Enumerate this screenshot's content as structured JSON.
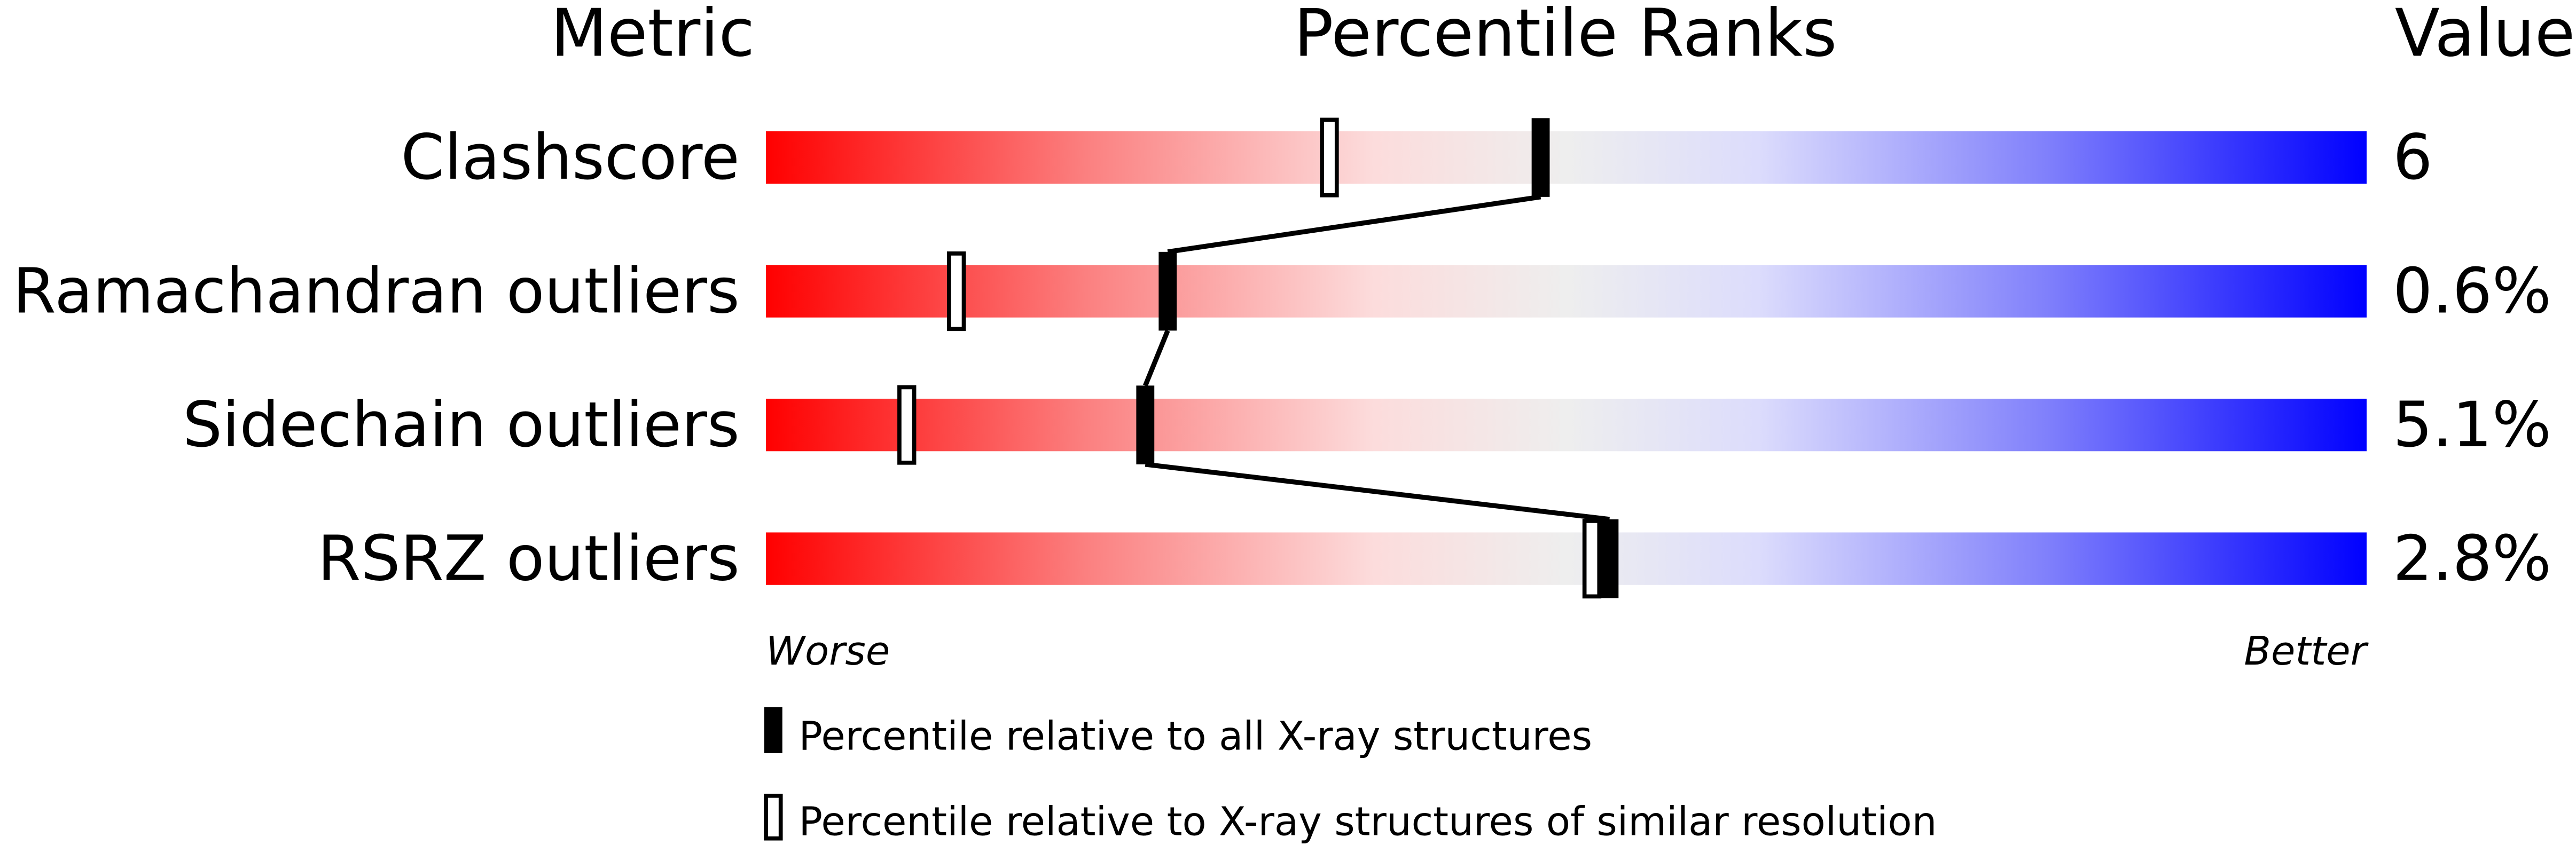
{
  "chart_data": {
    "type": "percentile-slider",
    "headers": {
      "metric": "Metric",
      "ranks": "Percentile Ranks",
      "value": "Value"
    },
    "xlim": [
      0,
      100
    ],
    "axis_labels": {
      "left": "Worse",
      "right": "Better"
    },
    "rows": [
      {
        "metric": "Clashscore",
        "value": "6",
        "percentile_all": 48.4,
        "percentile_similar": 35.2
      },
      {
        "metric": "Ramachandran outliers",
        "value": "0.6%",
        "percentile_all": 25.1,
        "percentile_similar": 11.9
      },
      {
        "metric": "Sidechain outliers",
        "value": "5.1%",
        "percentile_all": 23.7,
        "percentile_similar": 8.8
      },
      {
        "metric": "RSRZ outliers",
        "value": "2.8%",
        "percentile_all": 52.7,
        "percentile_similar": 51.6
      }
    ],
    "legend": [
      {
        "marker": "filled",
        "label": "Percentile relative to all X-ray structures"
      },
      {
        "marker": "hollow",
        "label": "Percentile relative to X-ray structures of similar resolution"
      }
    ],
    "colors": {
      "worse": "#ff0000",
      "mid": "#eeeeee",
      "better": "#0000ff",
      "marker": "#000000"
    }
  }
}
